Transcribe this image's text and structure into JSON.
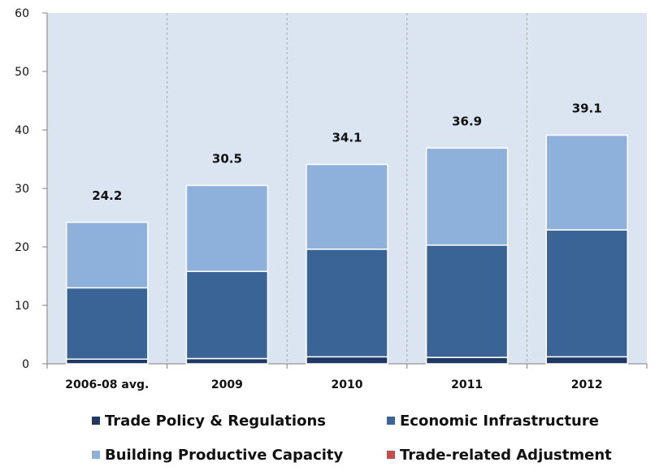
{
  "chart_data": {
    "type": "bar",
    "stacked": true,
    "title": "",
    "xlabel": "",
    "ylabel": "",
    "ylim": [
      0,
      60
    ],
    "yticks": [
      "0",
      "10",
      "20",
      "30",
      "40",
      "50",
      "60"
    ],
    "categories": [
      "2006-08 avg.",
      "2009",
      "2010",
      "2011",
      "2012"
    ],
    "totals": [
      "24.2",
      "30.5",
      "34.1",
      "36.9",
      "39.1"
    ],
    "series": [
      {
        "name": "Trade Policy & Regulations",
        "color": "#1f3864",
        "values": [
          0.8,
          0.9,
          1.2,
          1.1,
          1.2
        ]
      },
      {
        "name": "Economic Infrastructure",
        "color": "#3a6496",
        "values": [
          12.2,
          14.9,
          18.4,
          19.2,
          21.7
        ]
      },
      {
        "name": "Building Productive Capacity",
        "color": "#8eb1dc",
        "values": [
          11.2,
          14.7,
          14.5,
          16.6,
          16.2
        ]
      },
      {
        "name": "Trade-related Adjustment",
        "color": "#c0504d",
        "values": [
          0,
          0,
          0,
          0,
          0
        ]
      }
    ],
    "grid": "vertical-dashed-separators",
    "plot_background": "#dbe4f1",
    "legend_position": "bottom"
  }
}
